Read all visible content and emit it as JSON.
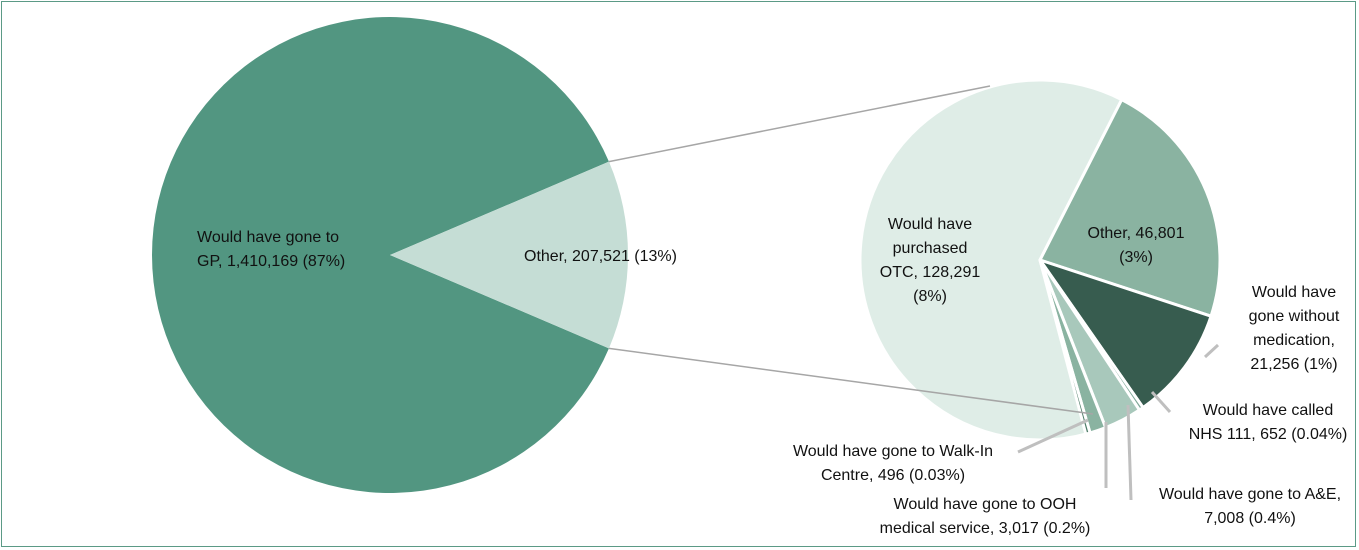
{
  "chart_data": {
    "type": "pie",
    "subtype": "pie-of-pie",
    "main": {
      "slices": [
        {
          "label_lines": [
            "Would have gone to",
            "GP, 1,410,169 (87%)"
          ],
          "value": 1410169,
          "percent": 87,
          "color": "#529681"
        },
        {
          "label_lines": [
            "Other, 207,521 (13%)"
          ],
          "value": 207521,
          "percent": 13,
          "color": "#c5ddd5"
        }
      ]
    },
    "secondary": {
      "slices": [
        {
          "label_lines": [
            "Would have",
            "purchased",
            "OTC, 128,291",
            "(8%)"
          ],
          "value": 128291,
          "percent": 8,
          "color": "#dfede7"
        },
        {
          "label_lines": [
            "Other, 46,801",
            "(3%)"
          ],
          "value": 46801,
          "percent": 3,
          "color": "#8ab3a1"
        },
        {
          "label_lines": [
            "Would have",
            "gone without",
            "medication,",
            "21,256 (1%)"
          ],
          "value": 21256,
          "percent": 1,
          "color": "#375c4f"
        },
        {
          "label_lines": [
            "Would have called",
            "NHS 111, 652 (0.04%)"
          ],
          "value": 652,
          "percent": 0.04,
          "color": "#7fa898"
        },
        {
          "label_lines": [
            "Would have gone to A&E,",
            "7,008 (0.4%)"
          ],
          "value": 7008,
          "percent": 0.4,
          "color": "#a8c8bb"
        },
        {
          "label_lines": [
            "Would have gone to OOH",
            "medical service, 3,017 (0.2%)"
          ],
          "value": 3017,
          "percent": 0.2,
          "color": "#8ab3a1"
        },
        {
          "label_lines": [
            "Would have gone to Walk-In",
            "Centre, 496 (0.03%)"
          ],
          "value": 496,
          "percent": 0.03,
          "color": "#4e7c68"
        }
      ]
    },
    "legend": "none",
    "title": ""
  }
}
